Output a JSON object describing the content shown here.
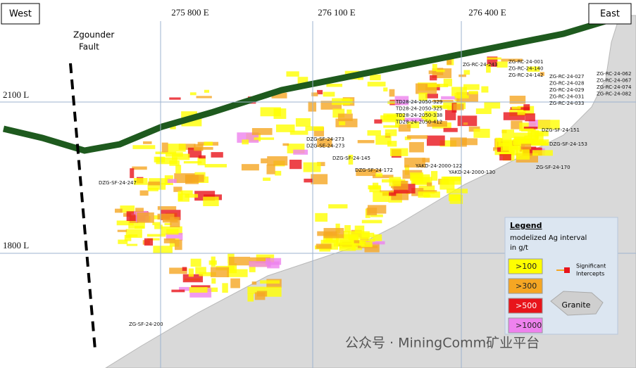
{
  "header": {
    "west": "West",
    "east": "East"
  },
  "grid": {
    "eastings": [
      "275 800 E",
      "276 100 E",
      "276 400 E"
    ],
    "levels": [
      "2100 L",
      "1800 L"
    ]
  },
  "fault": [
    "Zgounder",
    "Fault"
  ],
  "drillholes": [
    {
      "lines": [
        "ZG-RC-24-243"
      ]
    },
    {
      "lines": [
        "ZG-RC-24-001",
        "ZG-RC-24-140",
        "ZG-RC-24-142"
      ]
    },
    {
      "lines": [
        "ZG-RC-24-027",
        "ZG-RC-24-028",
        "ZG-RC-24-029",
        "ZG-RC-24-031",
        "ZG-RC-24-033"
      ]
    },
    {
      "lines": [
        "ZG-RC-24-062",
        "ZG-RC-24-067",
        "ZG-RC-24-074",
        "ZG-RC-24-082"
      ]
    },
    {
      "lines": [
        "TD28-24-2050-329",
        "TD28-24-2050-325",
        "TD28-24-2050-338",
        "TD28-24-2050-412"
      ]
    },
    {
      "lines": [
        "DZG-SF-24-273",
        "DZG-SE-24-273"
      ]
    },
    {
      "lines": [
        "DZG-SF-24-145"
      ]
    },
    {
      "lines": [
        "DZG-SF-24-172"
      ]
    },
    {
      "lines": [
        "YAKD-24-2000-122"
      ]
    },
    {
      "lines": [
        "YAKD-24-2000-130"
      ]
    },
    {
      "lines": [
        "DZG-SF-24-151"
      ]
    },
    {
      "lines": [
        "DZG-SF-24-153"
      ]
    },
    {
      "lines": [
        "ZG-SF-24-170"
      ]
    },
    {
      "lines": [
        "DZG-SF-24-247"
      ]
    },
    {
      "lines": [
        "ZG-SF-24-200"
      ]
    }
  ],
  "legend": {
    "title": "Legend",
    "subtitle": [
      "modelized Ag interval",
      "in g/t"
    ],
    "classes": [
      {
        "label": ">100",
        "color": "#ffff00"
      },
      {
        "label": ">300",
        "color": "#f5a623"
      },
      {
        "label": ">500",
        "color": "#e8141b"
      },
      {
        "label": ">1000",
        "color": "#ee82ee"
      }
    ],
    "intercepts": [
      "Significant",
      "Intercepts"
    ],
    "granite": "Granite"
  },
  "watermark": "公众号 · MiningComm矿业平台"
}
